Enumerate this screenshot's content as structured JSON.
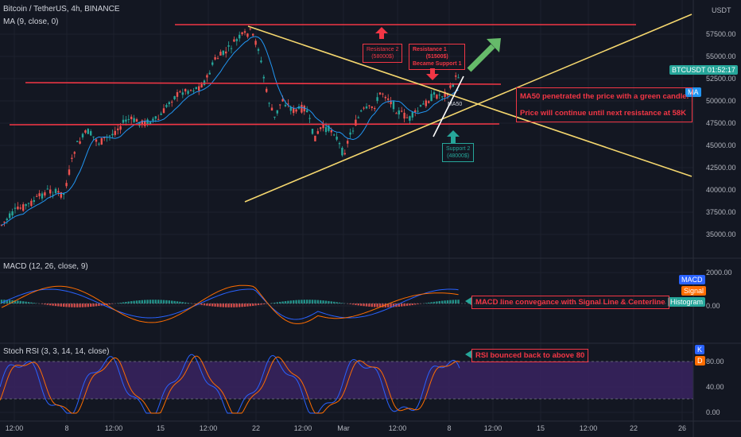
{
  "header": {
    "symbol": "Bitcoin / TetherUS, 4h, BINANCE",
    "ma_indicator": "MA (9, close, 0)"
  },
  "price_axis": {
    "currency": "USDT",
    "labels": [
      "57500.00",
      "55000.00",
      "52500.00",
      "50000.00",
      "47500.00",
      "45000.00",
      "42500.00",
      "40000.00",
      "37500.00",
      "35000.00"
    ]
  },
  "price_tag": {
    "symbol": "BTCUSDT",
    "countdown": "01:52:17",
    "ma_label": "MA"
  },
  "time_axis": {
    "labels": [
      "12:00",
      "8",
      "12:00",
      "15",
      "12:00",
      "22",
      "12:00",
      "Mar",
      "12:00",
      "8",
      "12:00",
      "15",
      "12:00",
      "22",
      "26"
    ]
  },
  "macd": {
    "title": "MACD (12, 26, close, 9)",
    "axis_labels": [
      "2000.00",
      "0.00"
    ],
    "legend": [
      "MACD",
      "Signal",
      "Histogram"
    ],
    "legend_colors": [
      "#2962ff",
      "#ff6d00",
      "#26a69a"
    ]
  },
  "stoch": {
    "title": "Stoch RSI (3, 3, 14, 14, close)",
    "axis_labels": [
      "80.00",
      "40.00",
      "0.00"
    ],
    "legend": [
      "K",
      "D"
    ],
    "legend_colors": [
      "#2962ff",
      "#ff6d00"
    ]
  },
  "annotations": {
    "resistance2": [
      "Resistance 2",
      "(58000$)"
    ],
    "resistance1": [
      "Resistance 1",
      "(51500$)",
      "Became Support 1"
    ],
    "support2": [
      "Support 2",
      "(48000$)"
    ],
    "ma50_label": "MA50",
    "main_note_1": "MA50 penetrated the price with a green candle.",
    "main_note_2": "Price will continue until next resistance at 58K",
    "macd_note": "MACD line convegance with Signal Line & Centerline",
    "rsi_note": "RSI bounced back to above 80"
  },
  "colors": {
    "up": "#26a69a",
    "down": "#ef5350",
    "background": "#131722",
    "resistance_line": "#f23645",
    "trend_line": "#f5d76e",
    "arrow_green": "#66bb6a"
  }
}
